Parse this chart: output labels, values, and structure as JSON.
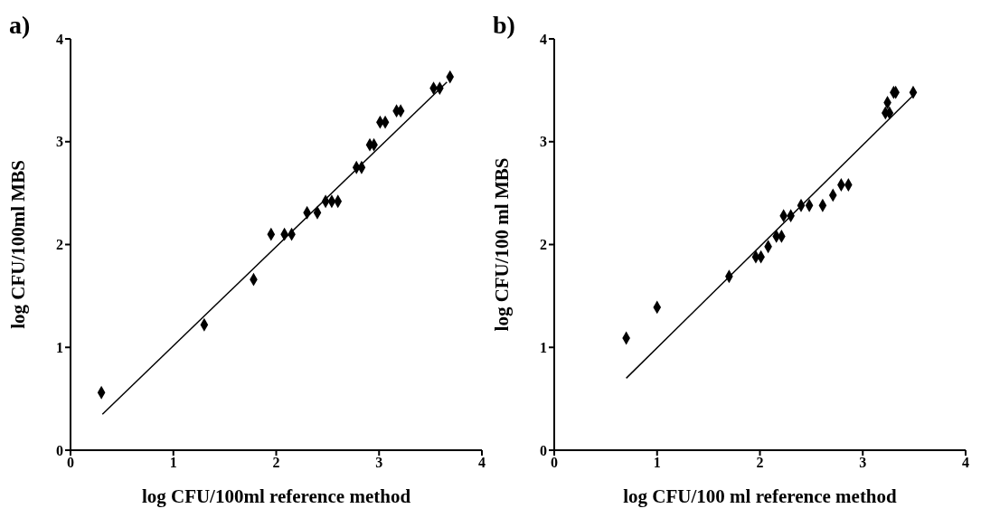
{
  "chart_data": [
    {
      "type": "scatter",
      "title": "a)",
      "xlabel": "log CFU/100ml reference method",
      "ylabel": "log CFU/100ml MBS",
      "xlim": [
        0,
        4
      ],
      "xticks": [
        0,
        1,
        2,
        3,
        4
      ],
      "ylim": [
        0,
        4
      ],
      "yticks": [
        0,
        1,
        2,
        3,
        4
      ],
      "grid": false,
      "marker": "diamond",
      "series": [
        {
          "color": "#000000",
          "x": [
            0.3,
            1.3,
            1.78,
            1.95,
            2.08,
            2.15,
            2.3,
            2.4,
            2.48,
            2.54,
            2.6,
            2.78,
            2.83,
            2.91,
            2.95,
            3.01,
            3.06,
            3.17,
            3.21,
            3.53,
            3.59,
            3.69
          ],
          "values": [
            0.56,
            1.22,
            1.66,
            2.1,
            2.1,
            2.1,
            2.31,
            2.31,
            2.42,
            2.42,
            2.42,
            2.75,
            2.75,
            2.97,
            2.97,
            3.19,
            3.19,
            3.3,
            3.3,
            3.52,
            3.52,
            3.63
          ]
        },
        {
          "type": "line",
          "color": "#000000",
          "marker": "none",
          "line_style": "solid",
          "x": [
            0.31,
            3.66
          ],
          "values": [
            0.35,
            3.58
          ]
        }
      ]
    },
    {
      "type": "scatter",
      "title": "b)",
      "xlabel": "log CFU/100 ml reference method",
      "ylabel": "log CFU/100 ml MBS",
      "xlim": [
        0,
        4
      ],
      "xticks": [
        0,
        1,
        2,
        3,
        4
      ],
      "ylim": [
        0,
        4
      ],
      "yticks": [
        0,
        1,
        2,
        3,
        4
      ],
      "grid": false,
      "marker": "diamond",
      "series": [
        {
          "color": "#000000",
          "x": [
            0.7,
            1.0,
            1.7,
            1.96,
            2.01,
            2.08,
            2.16,
            2.21,
            2.23,
            2.3,
            2.4,
            2.48,
            2.61,
            2.71,
            2.79,
            2.86,
            3.22,
            3.26,
            3.24,
            3.3,
            3.32,
            3.49
          ],
          "values": [
            1.09,
            1.39,
            1.69,
            1.88,
            1.88,
            1.98,
            2.08,
            2.08,
            2.28,
            2.28,
            2.38,
            2.38,
            2.38,
            2.48,
            2.58,
            2.58,
            3.28,
            3.28,
            3.38,
            3.48,
            3.48,
            3.48
          ]
        },
        {
          "type": "line",
          "color": "#000000",
          "marker": "none",
          "line_style": "solid",
          "x": [
            0.7,
            3.49
          ],
          "values": [
            0.7,
            3.45
          ]
        }
      ]
    }
  ]
}
